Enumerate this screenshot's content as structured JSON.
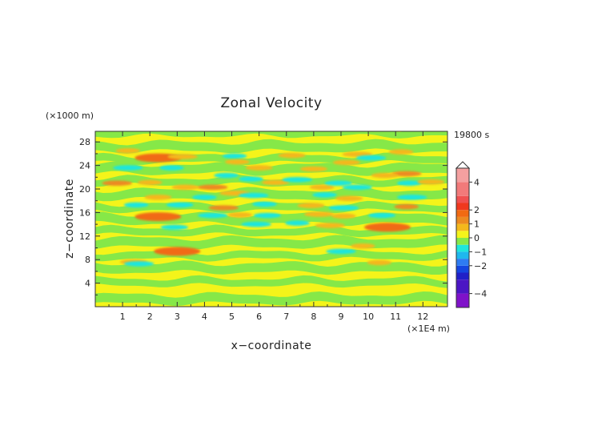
{
  "chart_data": {
    "type": "heatmap",
    "title": "Zonal Velocity",
    "xlabel": "x−coordinate",
    "ylabel": "z−coordinate",
    "x_unit": "(×1E4 m)",
    "y_unit": "(×1000 m)",
    "time_label": "19800 s",
    "xlim": [
      0,
      12.9
    ],
    "ylim": [
      0,
      29.8
    ],
    "x_ticks": [
      "1",
      "2",
      "3",
      "4",
      "5",
      "6",
      "7",
      "8",
      "9",
      "10",
      "11",
      "12"
    ],
    "y_ticks": [
      "4",
      "8",
      "12",
      "16",
      "20",
      "24",
      "28"
    ],
    "colorbar": {
      "levels": [
        -5,
        -4,
        -3,
        -2.5,
        -2,
        -1.5,
        -1,
        -0.5,
        0,
        0.5,
        1,
        1.5,
        2,
        2.5,
        3,
        4,
        5
      ],
      "tick_labels": [
        "4",
        "2",
        "1",
        "0",
        "−1",
        "−2",
        "−4"
      ],
      "tick_values": [
        4,
        2,
        1,
        0,
        -1,
        -2,
        -4
      ],
      "colors": [
        "#7f12c9",
        "#4b16c4",
        "#2020c8",
        "#1446e0",
        "#2e7cf2",
        "#1fb8ee",
        "#1fe6dc",
        "#86e848",
        "#f4f41a",
        "#f4b81c",
        "#ec8a20",
        "#f16a12",
        "#f0381e",
        "#f05050",
        "#f27a7a",
        "#f4a0a0"
      ]
    },
    "base_pattern": "alternating horizontal bands of yellow (0 to 0.5) and green (-0.5 to 0)",
    "anomalies": [
      {
        "x": 1.2,
        "z": 26.5,
        "value": 0.8
      },
      {
        "x": 2.3,
        "z": 25.3,
        "value": 1.6
      },
      {
        "x": 3.2,
        "z": 25.5,
        "value": 0.8
      },
      {
        "x": 5.1,
        "z": 25.6,
        "value": -0.8
      },
      {
        "x": 7.2,
        "z": 25.7,
        "value": 0.8
      },
      {
        "x": 9.6,
        "z": 25.9,
        "value": 0.7
      },
      {
        "x": 11.2,
        "z": 26.3,
        "value": 0.8
      },
      {
        "x": 9.2,
        "z": 24.5,
        "value": 0.6
      },
      {
        "x": 10.1,
        "z": 25.3,
        "value": -0.9
      },
      {
        "x": 5.2,
        "z": 24.6,
        "value": 0.8
      },
      {
        "x": 6.0,
        "z": 23.6,
        "value": 0.9
      },
      {
        "x": 1.2,
        "z": 23.6,
        "value": -0.9
      },
      {
        "x": 2.8,
        "z": 23.6,
        "value": -0.9
      },
      {
        "x": 8.0,
        "z": 23.4,
        "value": 0.8
      },
      {
        "x": 11.4,
        "z": 22.6,
        "value": 1.0
      },
      {
        "x": 4.8,
        "z": 22.3,
        "value": -0.7
      },
      {
        "x": 10.6,
        "z": 22.3,
        "value": 0.6
      },
      {
        "x": 0.8,
        "z": 21.0,
        "value": 1.0
      },
      {
        "x": 2.0,
        "z": 21.1,
        "value": 0.8
      },
      {
        "x": 3.3,
        "z": 20.3,
        "value": 0.8
      },
      {
        "x": 4.3,
        "z": 20.3,
        "value": 1.0
      },
      {
        "x": 5.7,
        "z": 21.7,
        "value": -0.7
      },
      {
        "x": 6.6,
        "z": 21.1,
        "value": 0.8
      },
      {
        "x": 7.4,
        "z": 21.6,
        "value": -0.7
      },
      {
        "x": 8.3,
        "z": 20.3,
        "value": 0.8
      },
      {
        "x": 8.9,
        "z": 21.0,
        "value": -0.8
      },
      {
        "x": 9.6,
        "z": 20.3,
        "value": -0.9
      },
      {
        "x": 11.5,
        "z": 21.0,
        "value": -0.7
      },
      {
        "x": 12.3,
        "z": 21.2,
        "value": 0.6
      },
      {
        "x": 5.1,
        "z": 19.3,
        "value": 0.8
      },
      {
        "x": 4.0,
        "z": 18.6,
        "value": -0.7
      },
      {
        "x": 2.3,
        "z": 18.6,
        "value": 0.6
      },
      {
        "x": 5.8,
        "z": 18.9,
        "value": -0.6
      },
      {
        "x": 8.4,
        "z": 19.0,
        "value": -0.8
      },
      {
        "x": 9.3,
        "z": 18.4,
        "value": 0.8
      },
      {
        "x": 11.6,
        "z": 18.6,
        "value": -0.7
      },
      {
        "x": 1.5,
        "z": 17.3,
        "value": -0.6
      },
      {
        "x": 3.1,
        "z": 17.3,
        "value": -0.6
      },
      {
        "x": 4.7,
        "z": 16.8,
        "value": 1.0
      },
      {
        "x": 6.2,
        "z": 17.4,
        "value": -0.6
      },
      {
        "x": 7.9,
        "z": 17.2,
        "value": 0.8
      },
      {
        "x": 9.1,
        "z": 16.8,
        "value": -0.6
      },
      {
        "x": 11.4,
        "z": 17.0,
        "value": 1.0
      },
      {
        "x": 2.3,
        "z": 15.3,
        "value": 1.6
      },
      {
        "x": 4.3,
        "z": 15.5,
        "value": -0.8
      },
      {
        "x": 5.3,
        "z": 15.6,
        "value": 0.9
      },
      {
        "x": 6.3,
        "z": 15.5,
        "value": -0.6
      },
      {
        "x": 8.2,
        "z": 15.7,
        "value": 0.8
      },
      {
        "x": 9.1,
        "z": 15.4,
        "value": 0.6
      },
      {
        "x": 10.5,
        "z": 15.5,
        "value": -0.9
      },
      {
        "x": 5.9,
        "z": 14.0,
        "value": -0.6
      },
      {
        "x": 7.4,
        "z": 14.2,
        "value": -0.6
      },
      {
        "x": 2.9,
        "z": 13.5,
        "value": -0.9
      },
      {
        "x": 8.6,
        "z": 13.8,
        "value": 0.7
      },
      {
        "x": 10.7,
        "z": 13.5,
        "value": 1.6
      },
      {
        "x": 3.0,
        "z": 9.4,
        "value": 1.6
      },
      {
        "x": 9.0,
        "z": 9.4,
        "value": -0.9
      },
      {
        "x": 9.8,
        "z": 10.3,
        "value": 0.6
      },
      {
        "x": 1.4,
        "z": 7.6,
        "value": 0.8
      },
      {
        "x": 1.6,
        "z": 7.3,
        "value": -0.8
      },
      {
        "x": 10.4,
        "z": 7.5,
        "value": 0.7
      }
    ]
  }
}
